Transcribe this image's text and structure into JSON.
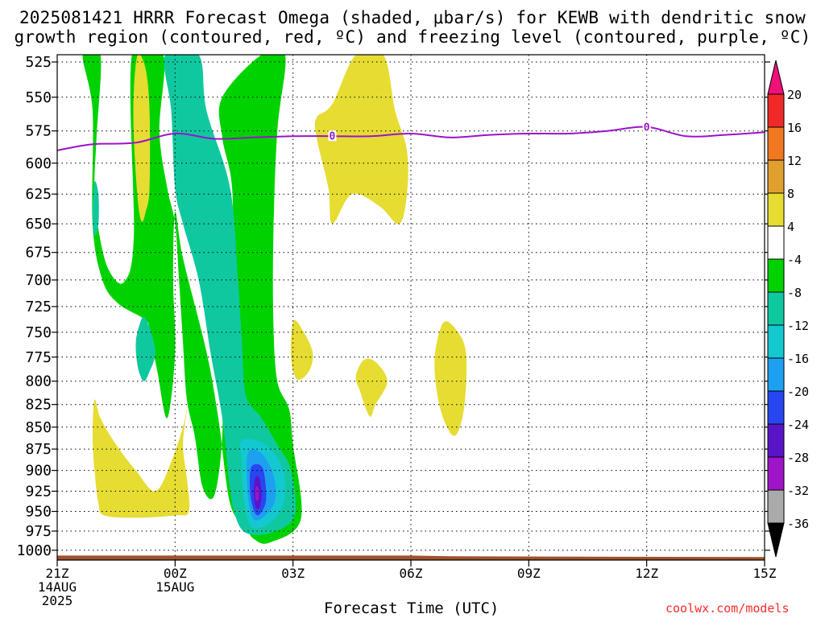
{
  "title": {
    "line1": "2025081421 HRRR Forecast Omega (shaded, μbar/s) for KEWB with dendritic snow",
    "line2": "growth region (contoured, red, ºC) and freezing level (contoured, purple, ºC)"
  },
  "xlabel": "Forecast Time (UTC)",
  "credit": "coolwx.com/models",
  "chart_data": {
    "type": "time-height cross section (filled contour)",
    "title": "2025081421 HRRR Forecast Omega (shaded, μbar/s) for KEWB with dendritic snow growth region (contoured, red, ºC) and freezing level (contoured, purple, ºC)",
    "xlabel": "Forecast Time (UTC)",
    "ylabel": "",
    "x_unit": "hours after 21Z 14 Aug 2025",
    "xlim": [
      0,
      18
    ],
    "ylim": [
      1013,
      520
    ],
    "y_scale": "log-pressure (hPa), inverted",
    "grid": true,
    "x_ticks": [
      {
        "x": 0,
        "label": "21Z",
        "sub": [
          "14AUG",
          "2025"
        ]
      },
      {
        "x": 3,
        "label": "00Z",
        "sub": [
          "15AUG"
        ]
      },
      {
        "x": 6,
        "label": "03Z",
        "sub": []
      },
      {
        "x": 9,
        "label": "06Z",
        "sub": []
      },
      {
        "x": 12,
        "label": "09Z",
        "sub": []
      },
      {
        "x": 15,
        "label": "12Z",
        "sub": []
      },
      {
        "x": 18,
        "label": "15Z",
        "sub": []
      }
    ],
    "y_ticks": [
      525,
      550,
      575,
      600,
      625,
      650,
      675,
      700,
      725,
      750,
      775,
      800,
      825,
      850,
      875,
      900,
      925,
      950,
      975,
      1000
    ],
    "colorbar": {
      "unit": "μbar/s",
      "labels": [
        "20",
        "16",
        "12",
        "8",
        "4",
        "-4",
        "-8",
        "-12",
        "-16",
        "-20",
        "-24",
        "-28",
        "-32",
        "-36"
      ],
      "bins": [
        {
          "lo": 20,
          "hi": null,
          "color": "#f0107a"
        },
        {
          "lo": 16,
          "hi": 20,
          "color": "#f02828"
        },
        {
          "lo": 12,
          "hi": 16,
          "color": "#f07820"
        },
        {
          "lo": 8,
          "hi": 12,
          "color": "#e0a030"
        },
        {
          "lo": 4,
          "hi": 8,
          "color": "#e6dc32"
        },
        {
          "lo": -4,
          "hi": 4,
          "color": "#ffffff"
        },
        {
          "lo": -8,
          "hi": -4,
          "color": "#00d200"
        },
        {
          "lo": -12,
          "hi": -8,
          "color": "#10c8a0"
        },
        {
          "lo": -16,
          "hi": -12,
          "color": "#14c8d2"
        },
        {
          "lo": -20,
          "hi": -16,
          "color": "#1ea0f0"
        },
        {
          "lo": -24,
          "hi": -20,
          "color": "#2846f0"
        },
        {
          "lo": -28,
          "hi": -24,
          "color": "#5a14c8"
        },
        {
          "lo": -32,
          "hi": -28,
          "color": "#a014c8"
        },
        {
          "lo": -36,
          "hi": -32,
          "color": "#aaaaaa"
        },
        {
          "lo": null,
          "hi": -36,
          "color": "#000000"
        }
      ]
    },
    "freezing_level": {
      "contour_label": "0",
      "color": "#9a14c8",
      "points": [
        [
          0,
          590
        ],
        [
          0.5,
          587
        ],
        [
          1,
          585
        ],
        [
          2,
          584
        ],
        [
          3,
          577
        ],
        [
          4,
          581
        ],
        [
          5,
          580
        ],
        [
          6,
          579
        ],
        [
          7,
          579
        ],
        [
          8,
          579
        ],
        [
          9,
          577
        ],
        [
          10,
          580
        ],
        [
          11,
          578
        ],
        [
          12,
          577
        ],
        [
          13,
          577
        ],
        [
          14,
          575
        ],
        [
          15,
          572
        ],
        [
          16,
          579
        ],
        [
          17,
          578
        ],
        [
          18,
          576
        ]
      ]
    },
    "surface": {
      "color": "#a0522d",
      "pressure_hPa": [
        [
          0,
          1007
        ],
        [
          9,
          1007
        ],
        [
          10,
          1008
        ],
        [
          18,
          1009
        ]
      ]
    },
    "omega_regions": [
      {
        "name": "ascent -4 to -8",
        "color": "#00d200",
        "points": [
          [
            0.65,
            520
          ],
          [
            1.1,
            520
          ],
          [
            1.0,
            580
          ],
          [
            0.95,
            620
          ],
          [
            1.05,
            655
          ],
          [
            1.3,
            690
          ],
          [
            1.7,
            702
          ],
          [
            1.95,
            660
          ],
          [
            1.9,
            520
          ],
          [
            2.7,
            520
          ],
          [
            2.6,
            575
          ],
          [
            2.8,
            620
          ],
          [
            3.0,
            650
          ],
          [
            3.1,
            700
          ],
          [
            3.2,
            760
          ],
          [
            3.3,
            820
          ],
          [
            3.5,
            860
          ],
          [
            3.7,
            920
          ],
          [
            4.0,
            930
          ],
          [
            4.2,
            860
          ],
          [
            4.2,
            760
          ],
          [
            4.45,
            700
          ],
          [
            4.45,
            620
          ],
          [
            4.2,
            580
          ],
          [
            4.2,
            550
          ],
          [
            5.2,
            520
          ],
          [
            5.8,
            520
          ],
          [
            5.6,
            575
          ],
          [
            5.5,
            660
          ],
          [
            5.5,
            740
          ],
          [
            5.6,
            800
          ],
          [
            5.9,
            830
          ],
          [
            6.0,
            870
          ],
          [
            6.2,
            960
          ],
          [
            5.4,
            990
          ],
          [
            5.0,
            985
          ],
          [
            4.8,
            970
          ],
          [
            4.4,
            940
          ],
          [
            4.1,
            840
          ],
          [
            3.8,
            770
          ],
          [
            3.2,
            680
          ],
          [
            3.0,
            640
          ],
          [
            2.95,
            700
          ],
          [
            3.0,
            770
          ],
          [
            2.8,
            840
          ],
          [
            2.55,
            790
          ],
          [
            2.35,
            750
          ],
          [
            2.25,
            738
          ],
          [
            1.55,
            722
          ],
          [
            1.15,
            700
          ],
          [
            0.9,
            650
          ],
          [
            0.9,
            560
          ]
        ]
      },
      {
        "name": "ascent -8 to -12",
        "color": "#10c8a0",
        "points": [
          [
            2.75,
            520
          ],
          [
            3.6,
            520
          ],
          [
            3.8,
            560
          ],
          [
            4.4,
            620
          ],
          [
            4.6,
            700
          ],
          [
            4.7,
            760
          ],
          [
            4.8,
            815
          ],
          [
            5.2,
            840
          ],
          [
            5.6,
            870
          ],
          [
            5.95,
            900
          ],
          [
            6.0,
            960
          ],
          [
            5.0,
            980
          ],
          [
            4.5,
            950
          ],
          [
            4.2,
            840
          ],
          [
            3.9,
            770
          ],
          [
            3.6,
            700
          ],
          [
            3.2,
            650
          ],
          [
            3.0,
            620
          ],
          [
            2.9,
            560
          ]
        ]
      },
      {
        "name": "ascent -8 to -12 (small cell near 00Z)",
        "color": "#10c8a0",
        "points": [
          [
            2.2,
            735
          ],
          [
            2.35,
            745
          ],
          [
            2.5,
            770
          ],
          [
            2.35,
            790
          ],
          [
            2.2,
            800
          ],
          [
            2.05,
            785
          ],
          [
            2.0,
            760
          ],
          [
            2.1,
            742
          ]
        ]
      },
      {
        "name": "ascent -8 to -12 (cell near 22Z)",
        "color": "#10c8a0",
        "points": [
          [
            0.95,
            615
          ],
          [
            1.05,
            625
          ],
          [
            1.05,
            650
          ],
          [
            0.95,
            660
          ],
          [
            0.9,
            640
          ]
        ]
      },
      {
        "name": "ascent -12 to -16",
        "color": "#14c8d2",
        "points": [
          [
            4.7,
            865
          ],
          [
            5.3,
            870
          ],
          [
            5.75,
            900
          ],
          [
            5.75,
            940
          ],
          [
            5.4,
            965
          ],
          [
            4.95,
            970
          ],
          [
            4.75,
            935
          ],
          [
            4.7,
            890
          ]
        ]
      },
      {
        "name": "ascent -16 to -20",
        "color": "#1ea0f0",
        "points": [
          [
            4.85,
            880
          ],
          [
            5.2,
            880
          ],
          [
            5.5,
            905
          ],
          [
            5.55,
            935
          ],
          [
            5.3,
            955
          ],
          [
            5.0,
            960
          ],
          [
            4.85,
            930
          ]
        ]
      },
      {
        "name": "ascent -20 to -24",
        "color": "#2846f0",
        "points": [
          [
            4.95,
            895
          ],
          [
            5.2,
            895
          ],
          [
            5.3,
            915
          ],
          [
            5.3,
            940
          ],
          [
            5.1,
            955
          ],
          [
            4.95,
            940
          ],
          [
            4.9,
            915
          ]
        ]
      },
      {
        "name": "ascent -24 to -28",
        "color": "#5a14c8",
        "points": [
          [
            5.05,
            908
          ],
          [
            5.15,
            910
          ],
          [
            5.2,
            930
          ],
          [
            5.15,
            945
          ],
          [
            5.05,
            945
          ],
          [
            5.0,
            925
          ]
        ]
      },
      {
        "name": "ascent -28 to -32",
        "color": "#a014c8",
        "points": [
          [
            5.05,
            920
          ],
          [
            5.12,
            922
          ],
          [
            5.12,
            935
          ],
          [
            5.05,
            935
          ]
        ]
      },
      {
        "name": "descent 4 to 8 (mid-level 02Z-05Z)",
        "color": "#e6dc32",
        "points": [
          [
            7.6,
            520
          ],
          [
            8.3,
            520
          ],
          [
            8.6,
            560
          ],
          [
            8.9,
            590
          ],
          [
            8.9,
            625
          ],
          [
            8.7,
            650
          ],
          [
            8.2,
            635
          ],
          [
            7.5,
            625
          ],
          [
            7.0,
            650
          ],
          [
            6.9,
            620
          ],
          [
            6.6,
            580
          ],
          [
            6.6,
            565
          ],
          [
            7.0,
            555
          ]
        ]
      },
      {
        "name": "descent 4 to 8 (22Z column)",
        "color": "#e6dc32",
        "points": [
          [
            2.05,
            520
          ],
          [
            2.25,
            530
          ],
          [
            2.35,
            560
          ],
          [
            2.35,
            620
          ],
          [
            2.25,
            640
          ],
          [
            2.15,
            648
          ],
          [
            2.05,
            630
          ],
          [
            1.95,
            580
          ],
          [
            1.95,
            545
          ]
        ]
      },
      {
        "name": "descent 4 to 8 (03Z cell)",
        "color": "#e6dc32",
        "points": [
          [
            6.0,
            740
          ],
          [
            6.2,
            745
          ],
          [
            6.5,
            770
          ],
          [
            6.4,
            790
          ],
          [
            6.1,
            798
          ],
          [
            5.95,
            775
          ]
        ]
      },
      {
        "name": "descent 4 to 8 (04Z cell)",
        "color": "#e6dc32",
        "points": [
          [
            7.8,
            778
          ],
          [
            8.1,
            780
          ],
          [
            8.4,
            800
          ],
          [
            8.1,
            825
          ],
          [
            7.95,
            838
          ],
          [
            7.7,
            810
          ],
          [
            7.6,
            795
          ]
        ]
      },
      {
        "name": "descent 4 to 8 (06Z cell)",
        "color": "#e6dc32",
        "points": [
          [
            9.8,
            742
          ],
          [
            10.1,
            745
          ],
          [
            10.4,
            770
          ],
          [
            10.35,
            830
          ],
          [
            10.1,
            860
          ],
          [
            9.75,
            830
          ],
          [
            9.6,
            780
          ]
        ]
      },
      {
        "name": "descent 4 to 8 (low-level 21Z-00Z)",
        "color": "#e6dc32",
        "points": [
          [
            0.95,
            820
          ],
          [
            1.1,
            840
          ],
          [
            1.5,
            870
          ],
          [
            2.0,
            900
          ],
          [
            2.5,
            925
          ],
          [
            2.9,
            890
          ],
          [
            3.2,
            850
          ],
          [
            3.3,
            830
          ],
          [
            3.2,
            870
          ],
          [
            3.3,
            910
          ],
          [
            3.35,
            950
          ],
          [
            3.0,
            955
          ],
          [
            2.0,
            958
          ],
          [
            1.2,
            955
          ],
          [
            1.05,
            940
          ],
          [
            0.95,
            900
          ],
          [
            0.9,
            860
          ]
        ]
      }
    ]
  }
}
